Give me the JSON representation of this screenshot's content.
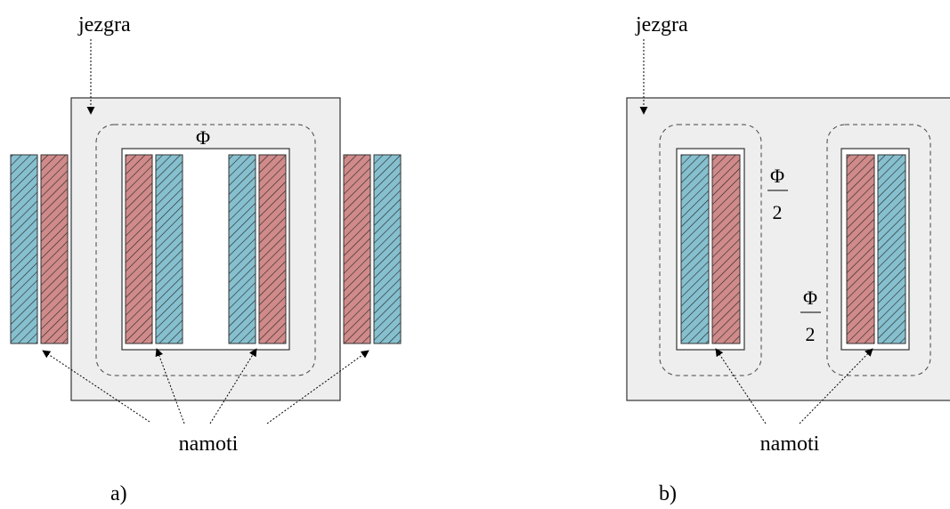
{
  "colors": {
    "core_fill": "#eeeeee",
    "core_stroke": "#333333",
    "winding_red": "#d08a8a",
    "winding_blue": "#86c0cf",
    "hatch": "#222222"
  },
  "diagram_a": {
    "core_label": "jezgra",
    "flux_label": "Φ",
    "windings_label": "namoti",
    "caption": "a)"
  },
  "diagram_b": {
    "core_label": "jezgra",
    "flux_numerator": "Φ",
    "flux_denominator": "2",
    "windings_label": "namoti",
    "caption": "b)"
  }
}
